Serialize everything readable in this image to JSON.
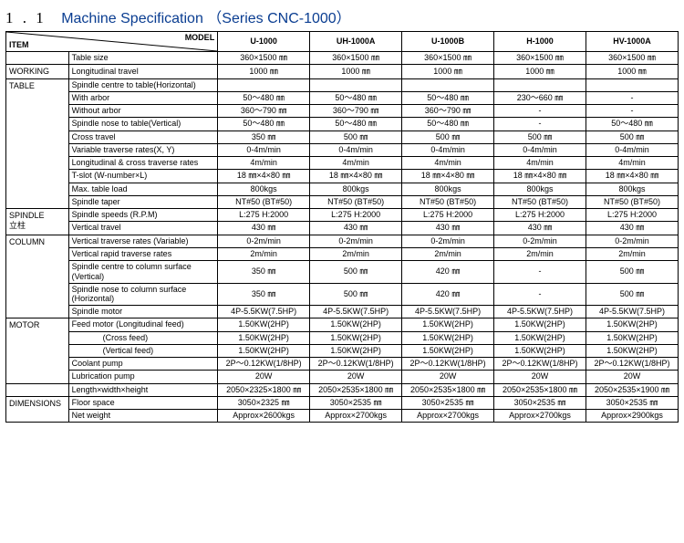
{
  "title": {
    "num": "1 . 1",
    "main": "Machine Specification",
    "paren": "（Series CNC-1000）"
  },
  "corner": {
    "item": "ITEM",
    "model": "MODEL"
  },
  "models": [
    "U-1000",
    "UH-1000A",
    "U-1000B",
    "H-1000",
    "HV-1000A"
  ],
  "groups": [
    {
      "label": "",
      "rows": [
        {
          "spec": "Table size",
          "vals": [
            "360×1500 ㎜",
            "360×1500 ㎜",
            "360×1500 ㎜",
            "360×1500 ㎜",
            "360×1500 ㎜"
          ]
        }
      ]
    },
    {
      "label": "WORKING",
      "rows": [
        {
          "spec": "Longitudinal travel",
          "vals": [
            "1000 ㎜",
            "1000 ㎜",
            "1000 ㎜",
            "1000 ㎜",
            "1000 ㎜"
          ]
        }
      ]
    },
    {
      "label": "TABLE",
      "rows": [
        {
          "spec": "Spindle centre to table(Horizontal)",
          "vals": [
            "",
            "",
            "",
            "",
            ""
          ]
        },
        {
          "spec": "With arbor",
          "vals": [
            "50～480 ㎜",
            "50～480 ㎜",
            "50～480 ㎜",
            "230～660 ㎜",
            "-"
          ]
        },
        {
          "spec": "Without arbor",
          "vals": [
            "360～790 ㎜",
            "360～790 ㎜",
            "360～790 ㎜",
            "-",
            "-"
          ]
        },
        {
          "spec": "Spindle nose to table(Vertical)",
          "vals": [
            "50～480 ㎜",
            "50～480 ㎜",
            "50～480 ㎜",
            "-",
            "50～480 ㎜"
          ]
        },
        {
          "spec": "Cross travel",
          "vals": [
            "350 ㎜",
            "500 ㎜",
            "500 ㎜",
            "500 ㎜",
            "500 ㎜"
          ]
        },
        {
          "spec": "Variable traverse rates(X, Y)",
          "vals": [
            "0-4m/min",
            "0-4m/min",
            "0-4m/min",
            "0-4m/min",
            "0-4m/min"
          ]
        },
        {
          "spec": "Longitudinal & cross traverse rates",
          "vals": [
            "4m/min",
            "4m/min",
            "4m/min",
            "4m/min",
            "4m/min"
          ]
        },
        {
          "spec": "T-slot (W-number×L)",
          "vals": [
            "18 ㎜×4×80 ㎜",
            "18 ㎜×4×80 ㎜",
            "18 ㎜×4×80 ㎜",
            "18 ㎜×4×80 ㎜",
            "18 ㎜×4×80 ㎜"
          ]
        },
        {
          "spec": "Max. table load",
          "vals": [
            "800kgs",
            "800kgs",
            "800kgs",
            "800kgs",
            "800kgs"
          ]
        },
        {
          "spec": "Spindle taper",
          "vals": [
            "NT#50 (BT#50)",
            "NT#50 (BT#50)",
            "NT#50 (BT#50)",
            "NT#50 (BT#50)",
            "NT#50 (BT#50)"
          ]
        }
      ]
    },
    {
      "label": "SPINDLE",
      "sublabel": "立柱",
      "rows": [
        {
          "spec": "Spindle speeds (R.P.M)",
          "vals": [
            "L:275   H:2000",
            "L:275   H:2000",
            "L:275   H:2000",
            "L:275   H:2000",
            "L:275   H:2000"
          ]
        },
        {
          "spec": "Vertical travel",
          "vals": [
            "430 ㎜",
            "430 ㎜",
            "430 ㎜",
            "430 ㎜",
            "430 ㎜"
          ]
        }
      ]
    },
    {
      "label": "COLUMN",
      "rows": [
        {
          "spec": "Vertical traverse rates (Variable)",
          "vals": [
            "0-2m/min",
            "0-2m/min",
            "0-2m/min",
            "0-2m/min",
            "0-2m/min"
          ]
        },
        {
          "spec": "Vertical rapid traverse rates",
          "vals": [
            "2m/min",
            "2m/min",
            "2m/min",
            "2m/min",
            "2m/min"
          ]
        },
        {
          "spec": "Spindle centre to column surface (Vertical)",
          "tall": true,
          "vals": [
            "350 ㎜",
            "500 ㎜",
            "420 ㎜",
            "-",
            "500 ㎜"
          ]
        },
        {
          "spec": "Spindle nose to column surface (Horizontal)",
          "tall": true,
          "vals": [
            "350 ㎜",
            "500 ㎜",
            "420 ㎜",
            "-",
            "500 ㎜"
          ]
        },
        {
          "spec": "Spindle motor",
          "vals": [
            "4P-5.5KW(7.5HP)",
            "4P-5.5KW(7.5HP)",
            "4P-5.5KW(7.5HP)",
            "4P-5.5KW(7.5HP)",
            "4P-5.5KW(7.5HP)"
          ]
        }
      ]
    },
    {
      "label": "MOTOR",
      "rows": [
        {
          "spec": "Feed motor     (Longitudinal feed)",
          "vals": [
            "1.50KW(2HP)",
            "1.50KW(2HP)",
            "1.50KW(2HP)",
            "1.50KW(2HP)",
            "1.50KW(2HP)"
          ]
        },
        {
          "spec": "(Cross feed)",
          "indent": true,
          "vals": [
            "1.50KW(2HP)",
            "1.50KW(2HP)",
            "1.50KW(2HP)",
            "1.50KW(2HP)",
            "1.50KW(2HP)"
          ]
        },
        {
          "spec": "(Vertical feed)",
          "indent": true,
          "vals": [
            "1.50KW(2HP)",
            "1.50KW(2HP)",
            "1.50KW(2HP)",
            "1.50KW(2HP)",
            "1.50KW(2HP)"
          ]
        },
        {
          "spec": "Coolant pump",
          "vals": [
            "2P～0.12KW(1/8HP)",
            "2P～0.12KW(1/8HP)",
            "2P～0.12KW(1/8HP)",
            "2P～0.12KW(1/8HP)",
            "2P～0.12KW(1/8HP)"
          ]
        },
        {
          "spec": "Lubrication pump",
          "vals": [
            "20W",
            "20W",
            "20W",
            "20W",
            "20W"
          ]
        }
      ]
    },
    {
      "label": "",
      "rows": [
        {
          "spec": "Length×width×height",
          "vals": [
            "2050×2325×1800 ㎜",
            "2050×2535×1800 ㎜",
            "2050×2535×1800 ㎜",
            "2050×2535×1800 ㎜",
            "2050×2535×1900 ㎜"
          ]
        }
      ]
    },
    {
      "label": "DIMENSIONS",
      "rows": [
        {
          "spec": "Floor space",
          "vals": [
            "3050×2325 ㎜",
            "3050×2535 ㎜",
            "3050×2535 ㎜",
            "3050×2535 ㎜",
            "3050×2535 ㎜"
          ]
        },
        {
          "spec": "Net weight",
          "vals": [
            "Approx×2600kgs",
            "Approx×2700kgs",
            "Approx×2700kgs",
            "Approx×2700kgs",
            "Approx×2900kgs"
          ]
        }
      ]
    }
  ]
}
